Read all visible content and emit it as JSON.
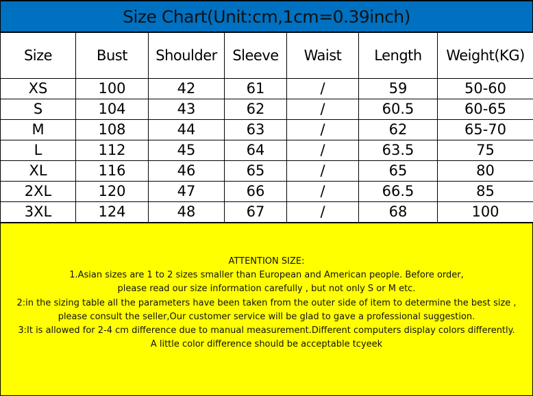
{
  "title": "Size Chart(Unit:cm,1cm=0.39inch)",
  "colors": {
    "title_bg": "#0070c0",
    "notes_bg": "#ffff00"
  },
  "headers": [
    "Size",
    "Bust",
    "Shoulder",
    "Sleeve",
    "Waist",
    "Length",
    "Weight(KG)"
  ],
  "rows": [
    [
      "XS",
      "100",
      "42",
      "61",
      "/",
      "59",
      "50-60"
    ],
    [
      "S",
      "104",
      "43",
      "62",
      "/",
      "60.5",
      "60-65"
    ],
    [
      "M",
      "108",
      "44",
      "63",
      "/",
      "62",
      "65-70"
    ],
    [
      "L",
      "112",
      "45",
      "64",
      "/",
      "63.5",
      "75"
    ],
    [
      "XL",
      "116",
      "46",
      "65",
      "/",
      "65",
      "80"
    ],
    [
      "2XL",
      "120",
      "47",
      "66",
      "/",
      "66.5",
      "85"
    ],
    [
      "3XL",
      "124",
      "48",
      "67",
      "/",
      "68",
      "100"
    ]
  ],
  "notes": [
    "ATTENTION SIZE:",
    "1.Asian sizes are 1 to 2 sizes smaller than European and American people. Before order,",
    "please read our size information carefully ,  but not only S or M etc.",
    "2:in the sizing table all the parameters have been taken from the outer side of item to determine the best size ,",
    "please consult the seller,Our customer service will be glad to gave a professional suggestion.",
    "3:It is allowed for 2-4 cm difference due to manual measurement.Different computers display colors differently.",
    "A little color difference should be acceptable tcyeek"
  ]
}
